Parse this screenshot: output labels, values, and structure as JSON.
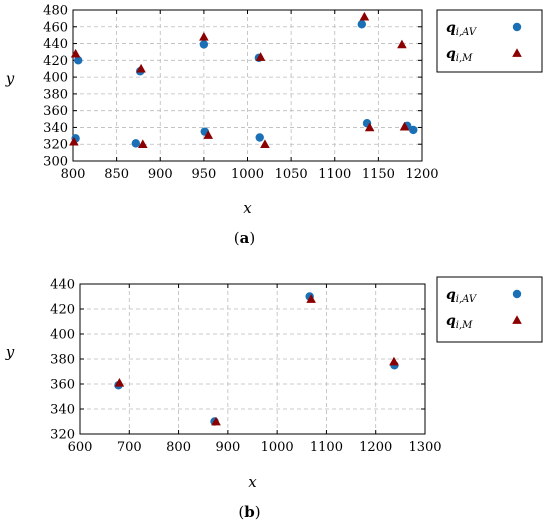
{
  "chart_data": [
    {
      "type": "scatter",
      "panel_label": "a",
      "xlabel": "x",
      "ylabel": "y",
      "xlim": [
        800,
        1200
      ],
      "ylim": [
        300,
        480
      ],
      "xticks": [
        800,
        850,
        900,
        950,
        1000,
        1050,
        1100,
        1150,
        1200
      ],
      "yticks": [
        300,
        320,
        340,
        360,
        380,
        400,
        420,
        440,
        460,
        480
      ],
      "grid": true,
      "legend_position": "outside-right-top",
      "series": [
        {
          "name": "q_{i,AV}",
          "name_main": "q",
          "name_sub": "i,AV",
          "marker": "circle",
          "color": "#1a6fb5",
          "points": [
            [
              803,
              327
            ],
            [
              806,
              420
            ],
            [
              872,
              321
            ],
            [
              877,
              407
            ],
            [
              950,
              439
            ],
            [
              951,
              335
            ],
            [
              1013,
              423
            ],
            [
              1014,
              328
            ],
            [
              1131,
              463
            ],
            [
              1137,
              345
            ],
            [
              1183,
              342
            ],
            [
              1190,
              337
            ]
          ]
        },
        {
          "name": "q_{i,M}",
          "name_main": "q",
          "name_sub": "i,M",
          "marker": "triangle",
          "color": "#8b0000",
          "points": [
            [
              801,
              323
            ],
            [
              803,
              428
            ],
            [
              880,
              320
            ],
            [
              878,
              410
            ],
            [
              950,
              448
            ],
            [
              955,
              331
            ],
            [
              1015,
              424
            ],
            [
              1020,
              320
            ],
            [
              1134,
              472
            ],
            [
              1140,
              340
            ],
            [
              1177,
              439
            ],
            [
              1180,
              341
            ]
          ]
        }
      ]
    },
    {
      "type": "scatter",
      "panel_label": "b",
      "xlabel": "x",
      "ylabel": "y",
      "xlim": [
        600,
        1300
      ],
      "ylim": [
        320,
        440
      ],
      "xticks": [
        600,
        700,
        800,
        900,
        1000,
        1100,
        1200,
        1300
      ],
      "yticks": [
        320,
        340,
        360,
        380,
        400,
        420,
        440
      ],
      "grid": true,
      "legend_position": "outside-right-top",
      "series": [
        {
          "name": "q_{i,AV}",
          "name_main": "q",
          "name_sub": "i,AV",
          "marker": "circle",
          "color": "#1a6fb5",
          "points": [
            [
              678,
              359
            ],
            [
              873,
              330
            ],
            [
              1066,
              430
            ],
            [
              1238,
              375
            ]
          ]
        },
        {
          "name": "q_{i,M}",
          "name_main": "q",
          "name_sub": "i,M",
          "marker": "triangle",
          "color": "#8b0000",
          "points": [
            [
              680,
              361
            ],
            [
              876,
              330
            ],
            [
              1069,
              428
            ],
            [
              1237,
              378
            ]
          ]
        }
      ]
    }
  ]
}
